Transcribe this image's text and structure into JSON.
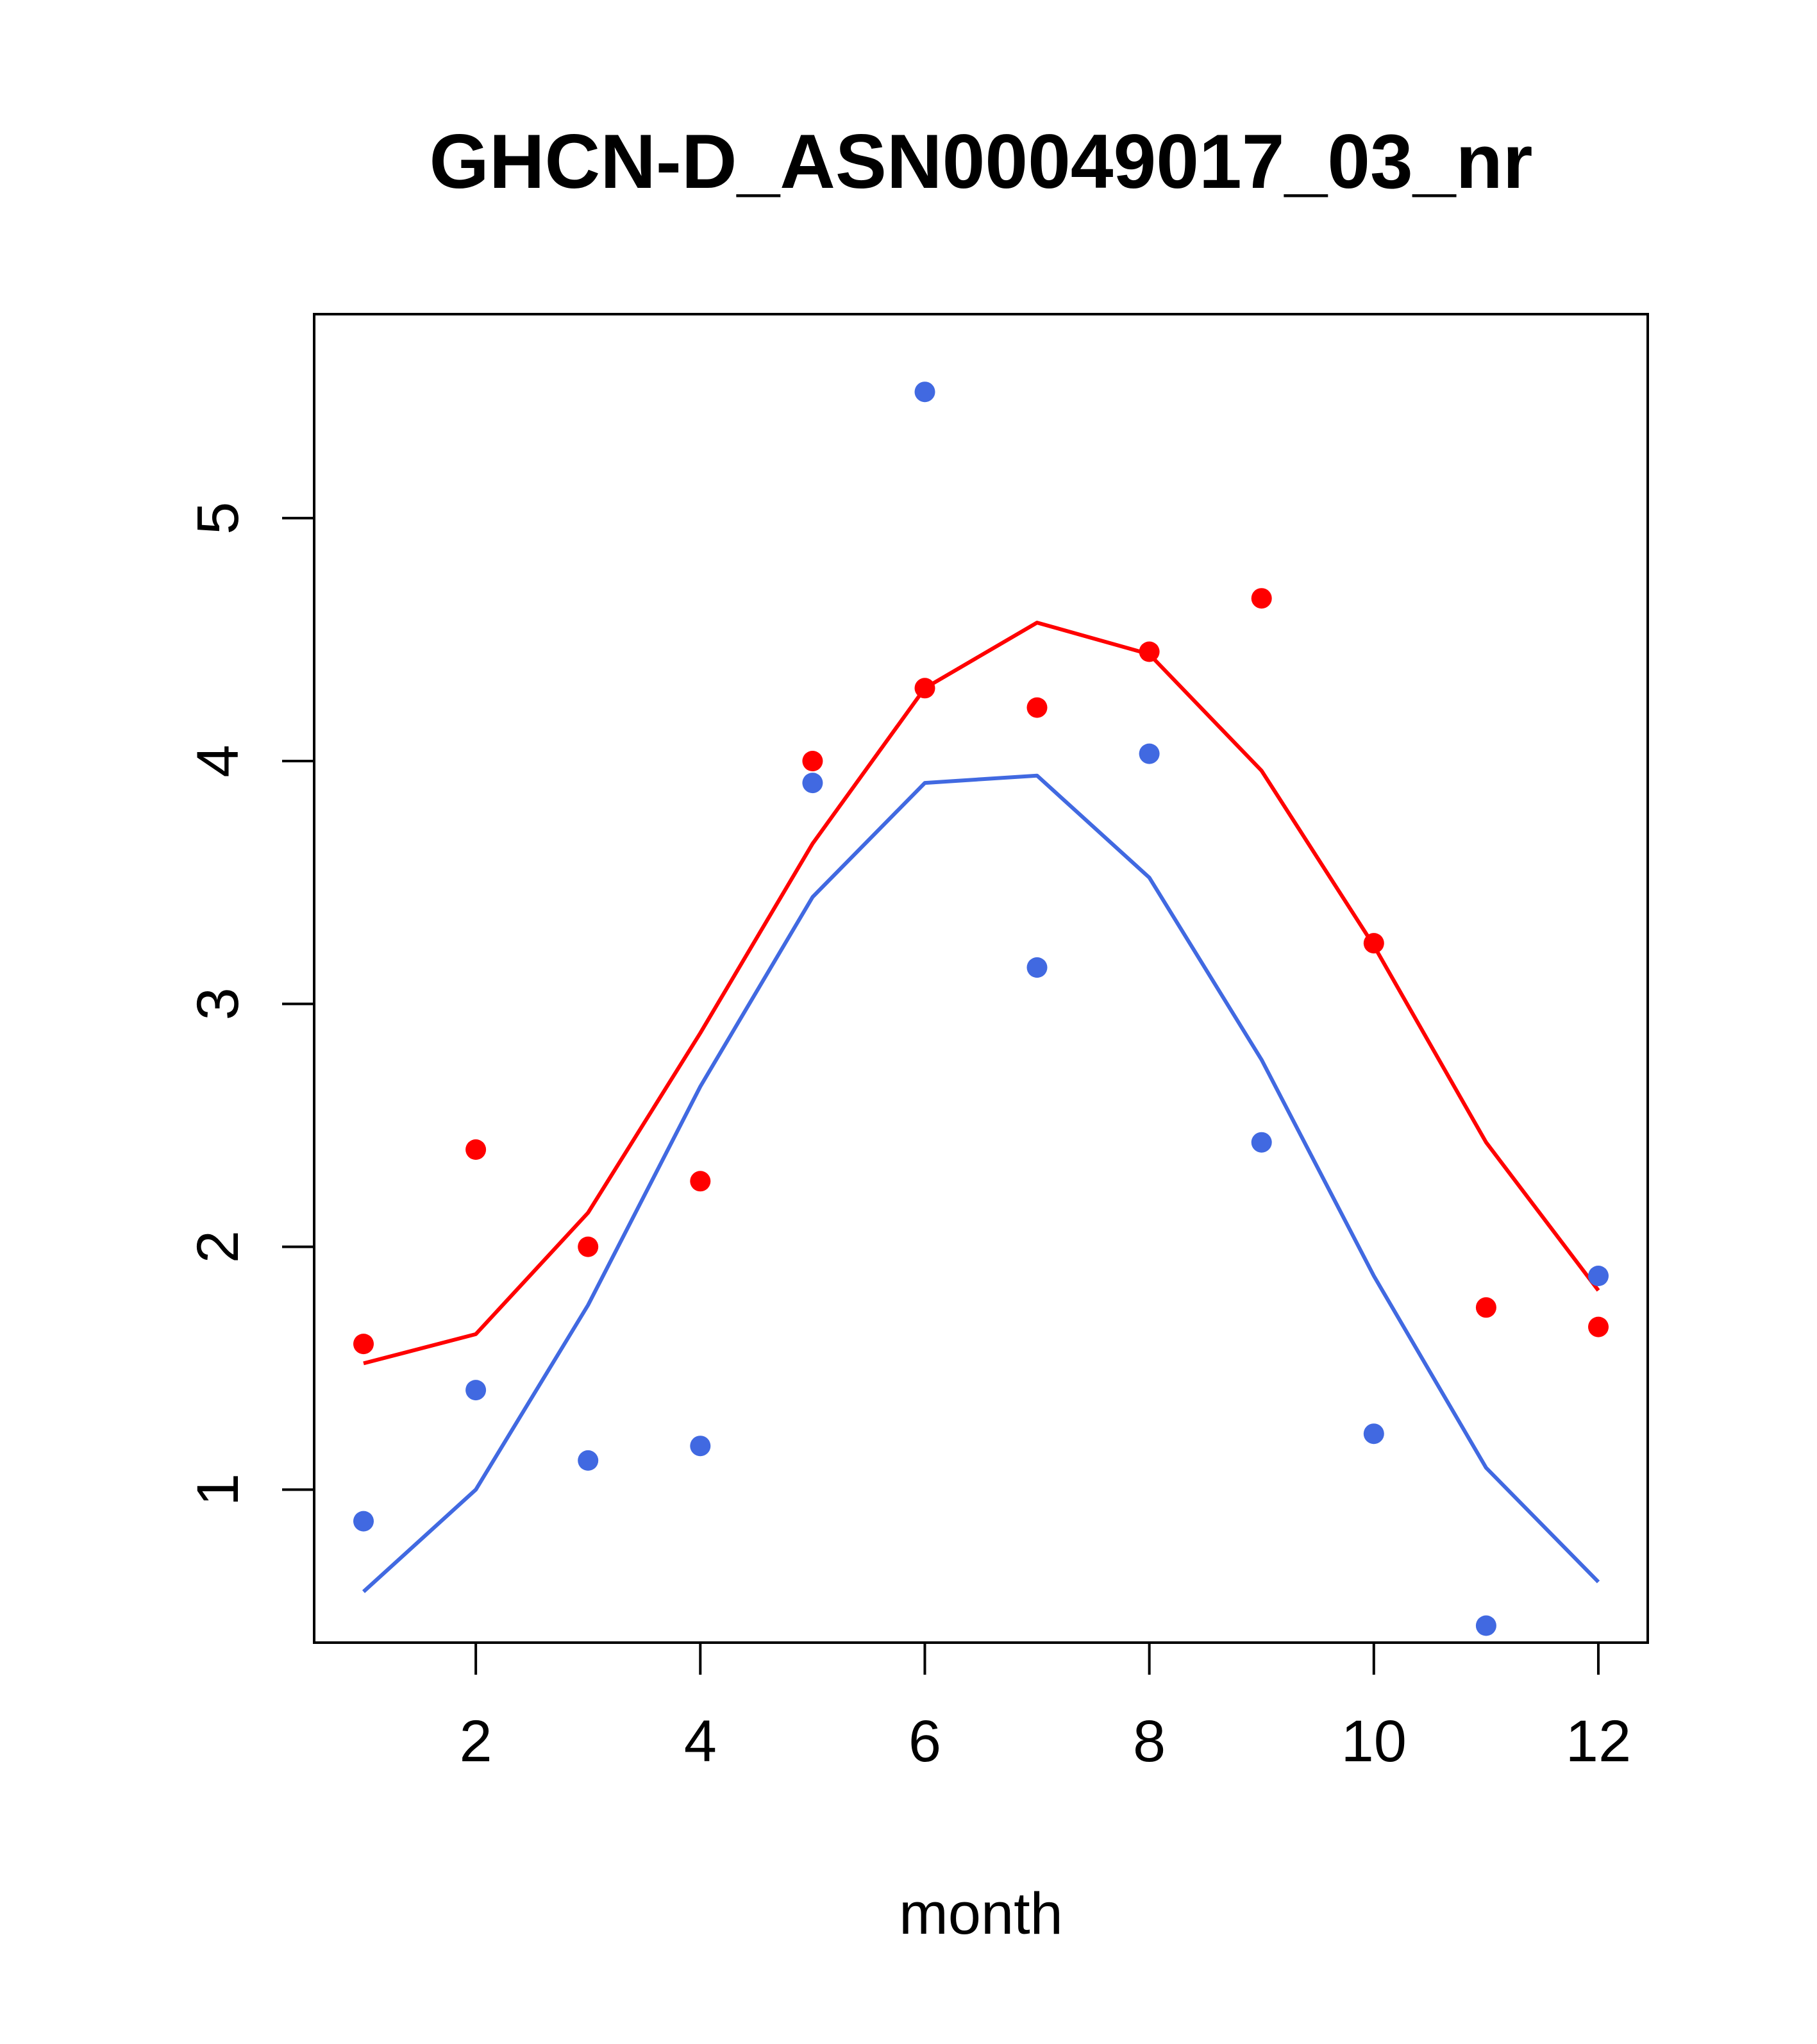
{
  "chart_data": {
    "type": "scatter",
    "title": "GHCN-D_ASN00049017_03_nr",
    "xlabel": "month",
    "ylabel": "",
    "xlim": [
      0.56,
      12.44
    ],
    "ylim": [
      0.37,
      5.84
    ],
    "x": [
      1,
      2,
      3,
      4,
      5,
      6,
      7,
      8,
      9,
      10,
      11,
      12
    ],
    "x_ticks": [
      2,
      4,
      6,
      8,
      10,
      12
    ],
    "y_ticks": [
      1,
      2,
      3,
      4,
      5
    ],
    "grid": false,
    "legend": "none",
    "series": [
      {
        "kind": "points",
        "color": "#ff0000",
        "values": [
          1.6,
          2.4,
          2.0,
          2.27,
          4.0,
          4.3,
          4.22,
          4.45,
          4.67,
          3.25,
          1.75,
          1.67
        ]
      },
      {
        "kind": "points",
        "color": "#4169e1",
        "values": [
          0.87,
          1.41,
          1.12,
          1.18,
          3.91,
          5.52,
          3.15,
          4.03,
          2.43,
          1.23,
          0.44,
          1.88
        ]
      },
      {
        "kind": "line",
        "color": "#ff0000",
        "values": [
          1.52,
          1.64,
          2.14,
          2.88,
          3.66,
          4.3,
          4.57,
          4.44,
          3.96,
          3.24,
          2.43,
          1.82
        ]
      },
      {
        "kind": "line",
        "color": "#4169e1",
        "values": [
          0.58,
          1.0,
          1.76,
          2.66,
          3.44,
          3.91,
          3.94,
          3.52,
          2.77,
          1.88,
          1.09,
          0.62
        ]
      }
    ]
  }
}
